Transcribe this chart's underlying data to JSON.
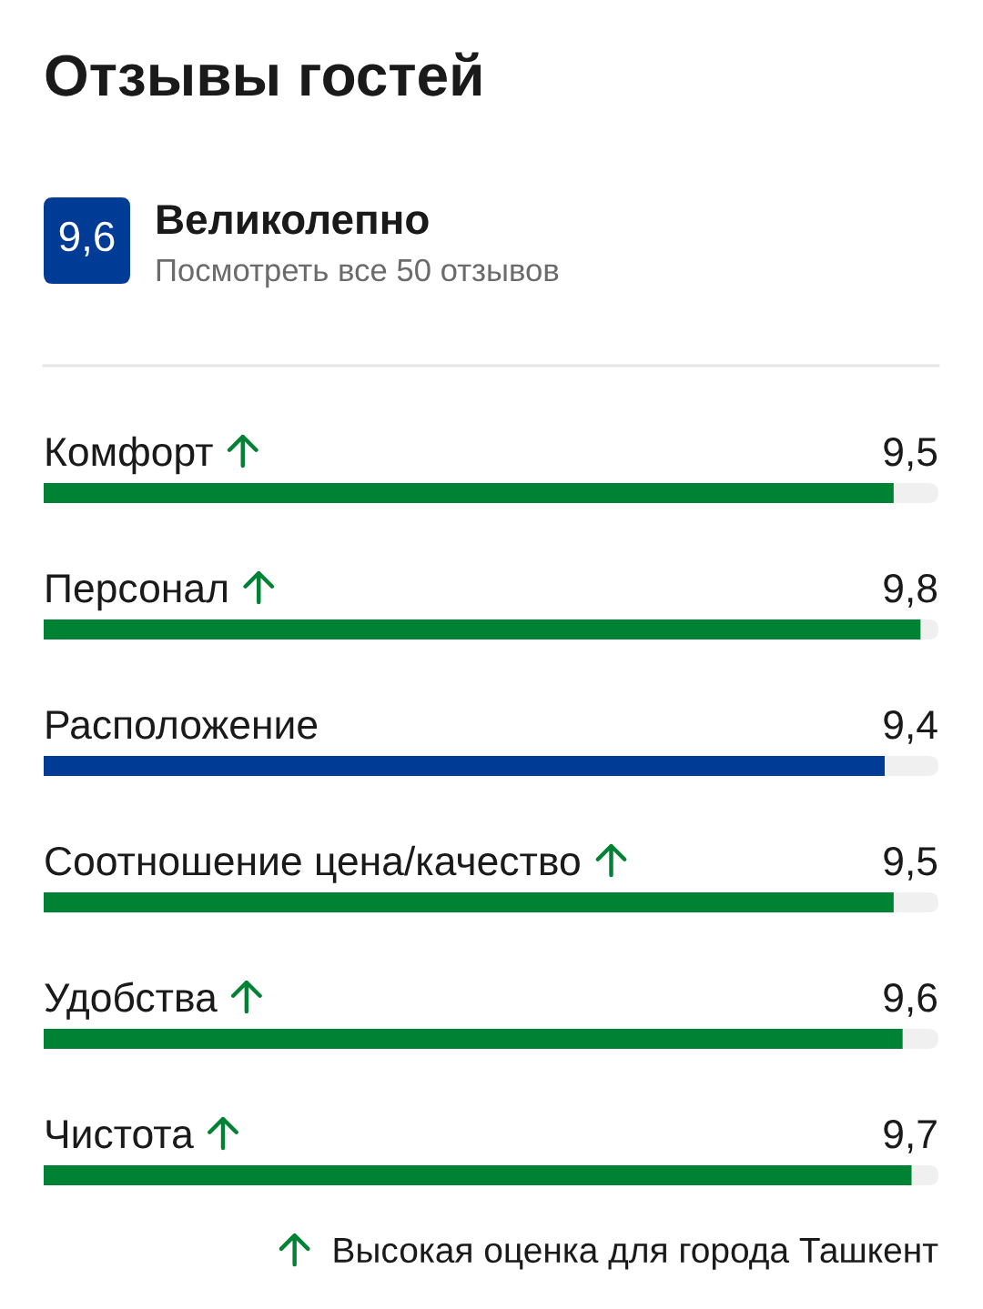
{
  "chart_data": {
    "type": "bar",
    "orientation": "horizontal",
    "title": "Отзывы гостей",
    "annotations": [
      "9,6",
      "Великолепно",
      "Посмотреть все 50 отзывов"
    ],
    "categories": [
      "Комфорт",
      "Персонал",
      "Расположение",
      "Соотношение цена/качество",
      "Удобства",
      "Чистота"
    ],
    "series": [
      {
        "name": "Высокая оценка для города Ташкент",
        "color": "#008234",
        "values": [
          9.5,
          9.8,
          null,
          9.5,
          9.6,
          9.7
        ],
        "value_labels": [
          "9,5",
          "9,8",
          null,
          "9,5",
          "9,6",
          "9,7"
        ]
      },
      {
        "color": "#003b95",
        "values": [
          null,
          null,
          9.4,
          null,
          null,
          null
        ],
        "value_labels": [
          null,
          null,
          "9,4",
          null,
          null,
          null
        ]
      }
    ],
    "xlim": [
      0,
      10
    ],
    "tick_labels": "y",
    "legend": "bottom right"
  }
}
